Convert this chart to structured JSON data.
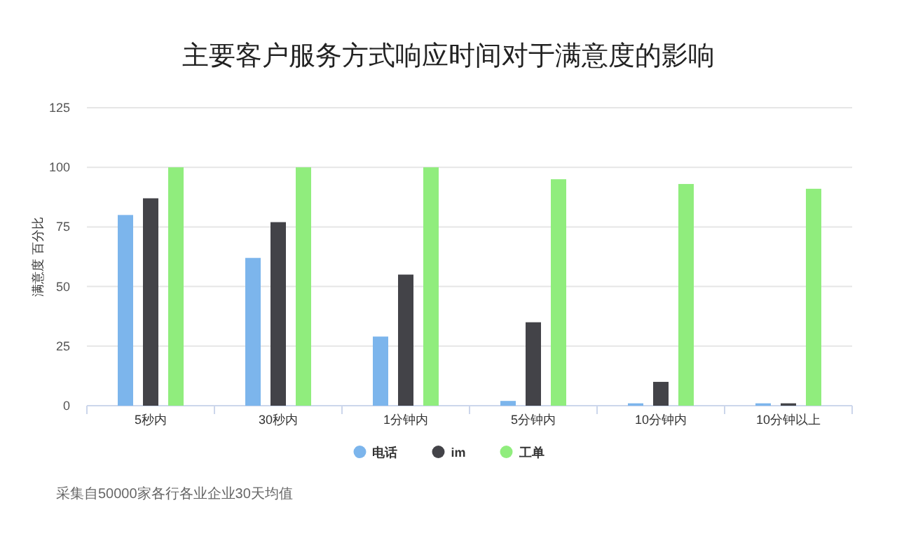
{
  "chart_data": {
    "type": "bar",
    "title": "主要客户服务方式响应时间对于满意度的影响",
    "ylabel": "满意度 百分比",
    "categories": [
      "5秒内",
      "30秒内",
      "1分钟内",
      "5分钟内",
      "10分钟内",
      "10分钟以上"
    ],
    "series": [
      {
        "name": "电话",
        "color": "#7cb5ec",
        "values": [
          80,
          62,
          29,
          2,
          1,
          1
        ]
      },
      {
        "name": "im",
        "color": "#434348",
        "values": [
          87,
          77,
          55,
          35,
          10,
          1
        ]
      },
      {
        "name": "工单",
        "color": "#90ed7d",
        "values": [
          100,
          100,
          100,
          95,
          93,
          91
        ]
      }
    ],
    "ylim": [
      0,
      125
    ],
    "yticks": [
      0,
      25,
      50,
      75,
      100,
      125
    ],
    "grid": "y",
    "legend": "bottom",
    "annotations": [
      "采集自50000家各行各业企业30天均值"
    ]
  }
}
